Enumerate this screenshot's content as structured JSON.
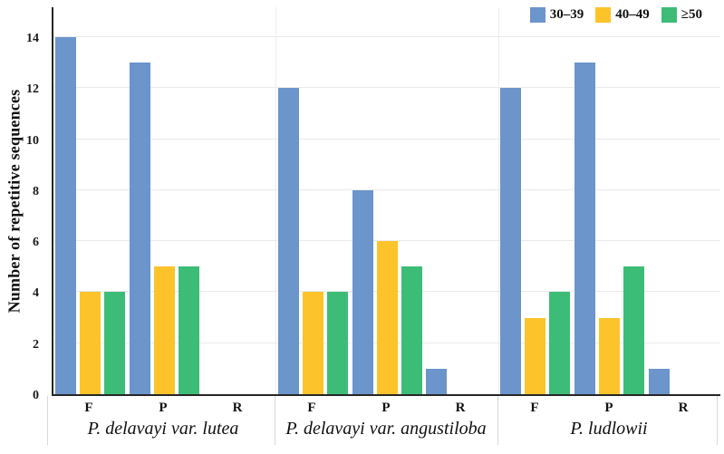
{
  "figure": {
    "ylabel": "Number of repetitive sequences"
  },
  "colors": {
    "series_blue": "#6B95CB",
    "series_yellow": "#FDC32B",
    "series_green": "#3DBC77",
    "gridline": "#EAEAEA",
    "axis": "#262626",
    "separator": "#D9D9D9"
  },
  "chart_data": {
    "type": "bar",
    "title": "",
    "xlabel": "",
    "ylabel": "Number of repetitive sequences",
    "ylim": [
      0,
      15.2
    ],
    "yticks": [
      0,
      2,
      4,
      6,
      8,
      10,
      12,
      14
    ],
    "grid": "horizontal",
    "legend_position": "top-right",
    "series": [
      {
        "name": "30–39",
        "color": "#6B95CB"
      },
      {
        "name": "40–49",
        "color": "#FDC32B"
      },
      {
        "name": "≥50",
        "color": "#3DBC77"
      }
    ],
    "groups": [
      {
        "label": "P. delavayi var. lutea",
        "categories": [
          {
            "label": "F",
            "values": [
              14,
              4,
              4
            ]
          },
          {
            "label": "P",
            "values": [
              13,
              5,
              5
            ]
          },
          {
            "label": "R",
            "values": [
              0,
              0,
              0
            ]
          }
        ]
      },
      {
        "label": "P. delavayi var. angustiloba",
        "categories": [
          {
            "label": "F",
            "values": [
              12,
              4,
              4
            ]
          },
          {
            "label": "P",
            "values": [
              8,
              6,
              5
            ]
          },
          {
            "label": "R",
            "values": [
              1,
              0,
              0
            ]
          }
        ]
      },
      {
        "label": "P. ludlowii",
        "categories": [
          {
            "label": "F",
            "values": [
              12,
              3,
              4
            ]
          },
          {
            "label": "P",
            "values": [
              13,
              3,
              5
            ]
          },
          {
            "label": "R",
            "values": [
              1,
              0,
              0
            ]
          }
        ]
      }
    ]
  }
}
